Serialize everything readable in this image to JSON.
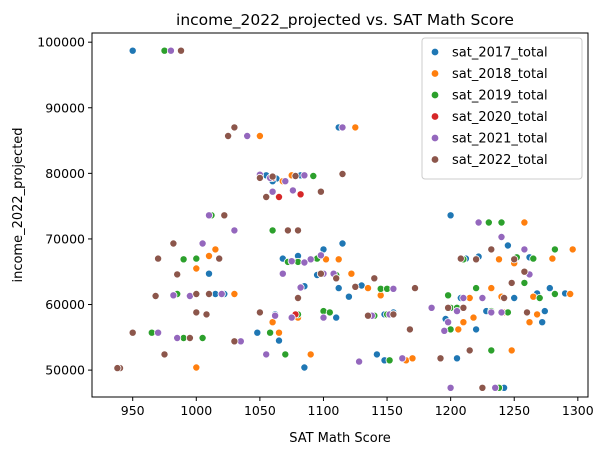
{
  "chart_data": {
    "type": "scatter",
    "title": "income_2022_projected vs. SAT Math Score",
    "xlabel": "SAT Math Score",
    "ylabel": "income_2022_projected",
    "xlim": [
      918,
      1308
    ],
    "ylim": [
      45900,
      101400
    ],
    "xticks": [
      950,
      1000,
      1050,
      1100,
      1150,
      1200,
      1250,
      1300
    ],
    "yticks": [
      50000,
      60000,
      70000,
      80000,
      90000,
      100000
    ],
    "grid": false,
    "legend_position": "top-right",
    "series": [
      {
        "name": "sat_2017_total",
        "color": "#1f77b4",
        "points": [
          [
            950,
            98700
          ],
          [
            1063,
            79200
          ],
          [
            1055,
            79700
          ],
          [
            1060,
            78800
          ],
          [
            1082,
            79700
          ],
          [
            1112,
            87000
          ],
          [
            1100,
            68400
          ],
          [
            1115,
            69300
          ],
          [
            1068,
            67000
          ],
          [
            1080,
            67400
          ],
          [
            1090,
            66900
          ],
          [
            1010,
            64700
          ],
          [
            1000,
            61600
          ],
          [
            1015,
            61600
          ],
          [
            1022,
            61600
          ],
          [
            1095,
            64500
          ],
          [
            1085,
            62800
          ],
          [
            1112,
            62500
          ],
          [
            1120,
            61200
          ],
          [
            1130,
            62900
          ],
          [
            1145,
            62400
          ],
          [
            1048,
            55700
          ],
          [
            1065,
            54500
          ],
          [
            1085,
            50400
          ],
          [
            1142,
            52400
          ],
          [
            1148,
            51500
          ],
          [
            1062,
            58500
          ],
          [
            1110,
            58000
          ],
          [
            1148,
            58500
          ],
          [
            1200,
            73600
          ],
          [
            1230,
            72500
          ],
          [
            1240,
            72500
          ],
          [
            1212,
            67000
          ],
          [
            1222,
            67300
          ],
          [
            1245,
            69000
          ],
          [
            1262,
            67200
          ],
          [
            1268,
            61700
          ],
          [
            1274,
            59000
          ],
          [
            1278,
            62500
          ],
          [
            1290,
            61700
          ],
          [
            1205,
            51800
          ],
          [
            1238,
            47300
          ],
          [
            1242,
            47300
          ],
          [
            1220,
            56200
          ],
          [
            1228,
            59000
          ],
          [
            1250,
            61000
          ],
          [
            1272,
            57300
          ],
          [
            1208,
            61000
          ],
          [
            1196,
            57800
          ],
          [
            1155,
            58800
          ]
        ]
      },
      {
        "name": "sat_2018_total",
        "color": "#ff7f0e",
        "points": [
          [
            1050,
            85700
          ],
          [
            1125,
            87000
          ],
          [
            1075,
            79700
          ],
          [
            1068,
            78800
          ],
          [
            1102,
            66900
          ],
          [
            1112,
            66900
          ],
          [
            1098,
            64700
          ],
          [
            1122,
            64700
          ],
          [
            1015,
            68400
          ],
          [
            1010,
            67400
          ],
          [
            1000,
            65500
          ],
          [
            1030,
            61600
          ],
          [
            1065,
            55700
          ],
          [
            1080,
            58000
          ],
          [
            1090,
            52400
          ],
          [
            1000,
            50400
          ],
          [
            1060,
            57300
          ],
          [
            1135,
            62500
          ],
          [
            1145,
            61400
          ],
          [
            1165,
            51500
          ],
          [
            1170,
            51800
          ],
          [
            1155,
            58500
          ],
          [
            1258,
            72500
          ],
          [
            1250,
            66300
          ],
          [
            1280,
            67000
          ],
          [
            1296,
            68400
          ],
          [
            1294,
            61600
          ],
          [
            1265,
            61200
          ],
          [
            1268,
            58500
          ],
          [
            1240,
            61200
          ],
          [
            1248,
            53000
          ],
          [
            1238,
            47300
          ],
          [
            1210,
            57300
          ],
          [
            1218,
            58000
          ],
          [
            1242,
            58800
          ],
          [
            1262,
            57300
          ],
          [
            1206,
            56200
          ],
          [
            1215,
            61000
          ],
          [
            1232,
            62500
          ],
          [
            1238,
            66900
          ]
        ]
      },
      {
        "name": "sat_2019_total",
        "color": "#2ca02c",
        "points": [
          [
            975,
            98700
          ],
          [
            1012,
            73600
          ],
          [
            1022,
            73600
          ],
          [
            1060,
            71300
          ],
          [
            1092,
            79600
          ],
          [
            1072,
            66500
          ],
          [
            1080,
            66500
          ],
          [
            1095,
            67000
          ],
          [
            1000,
            67000
          ],
          [
            1005,
            69300
          ],
          [
            985,
            61600
          ],
          [
            1020,
            61600
          ],
          [
            990,
            66900
          ],
          [
            965,
            55700
          ],
          [
            990,
            54900
          ],
          [
            1005,
            54900
          ],
          [
            1058,
            55700
          ],
          [
            1070,
            52400
          ],
          [
            1080,
            58500
          ],
          [
            1100,
            59000
          ],
          [
            1105,
            58800
          ],
          [
            1110,
            64500
          ],
          [
            1145,
            62400
          ],
          [
            1150,
            62400
          ],
          [
            1152,
            51500
          ],
          [
            1140,
            58300
          ],
          [
            1150,
            58500
          ],
          [
            1200,
            56200
          ],
          [
            1200,
            59500
          ],
          [
            1205,
            59500
          ],
          [
            1198,
            61400
          ],
          [
            1232,
            53000
          ],
          [
            1238,
            47300
          ],
          [
            1230,
            72500
          ],
          [
            1240,
            72500
          ],
          [
            1252,
            67200
          ],
          [
            1258,
            63300
          ],
          [
            1265,
            67000
          ],
          [
            1282,
            68400
          ],
          [
            1282,
            61600
          ],
          [
            1270,
            61000
          ],
          [
            1232,
            59000
          ],
          [
            1245,
            58800
          ],
          [
            1220,
            62500
          ],
          [
            1210,
            66900
          ]
        ]
      },
      {
        "name": "sat_2020_total",
        "color": "#d62728",
        "points": [
          [
            1065,
            76400
          ],
          [
            1082,
            76800
          ],
          [
            1078,
            58500
          ],
          [
            1100,
            64700
          ],
          [
            1060,
            79300
          ]
        ]
      },
      {
        "name": "sat_2021_total",
        "color": "#9467bd",
        "points": [
          [
            980,
            98700
          ],
          [
            1040,
            85700
          ],
          [
            1115,
            87000
          ],
          [
            1050,
            79800
          ],
          [
            1058,
            79300
          ],
          [
            1060,
            77200
          ],
          [
            1076,
            77400
          ],
          [
            1085,
            79700
          ],
          [
            1070,
            78800
          ],
          [
            1010,
            73600
          ],
          [
            1030,
            71300
          ],
          [
            1005,
            69300
          ],
          [
            1098,
            67500
          ],
          [
            1090,
            66900
          ],
          [
            1075,
            66600
          ],
          [
            1068,
            64700
          ],
          [
            1020,
            61600
          ],
          [
            995,
            61300
          ],
          [
            982,
            61400
          ],
          [
            970,
            55700
          ],
          [
            985,
            54900
          ],
          [
            1035,
            54400
          ],
          [
            1055,
            52400
          ],
          [
            1100,
            64700
          ],
          [
            1108,
            64700
          ],
          [
            1062,
            58300
          ],
          [
            1075,
            58000
          ],
          [
            1100,
            58000
          ],
          [
            1128,
            51300
          ],
          [
            1138,
            58300
          ],
          [
            1152,
            58500
          ],
          [
            1162,
            51800
          ],
          [
            1185,
            59500
          ],
          [
            1198,
            57300
          ],
          [
            1205,
            59000
          ],
          [
            1200,
            47300
          ],
          [
            1235,
            47300
          ],
          [
            1222,
            72500
          ],
          [
            1240,
            70300
          ],
          [
            1258,
            68400
          ],
          [
            1262,
            64600
          ],
          [
            1248,
            63300
          ],
          [
            1225,
            61000
          ],
          [
            1232,
            58800
          ],
          [
            1240,
            58800
          ],
          [
            1210,
            61000
          ],
          [
            1195,
            56000
          ],
          [
            1155,
            62400
          ],
          [
            1082,
            62600
          ],
          [
            1085,
            66400
          ]
        ]
      },
      {
        "name": "sat_2022_total",
        "color": "#8c564b",
        "points": [
          [
            988,
            98700
          ],
          [
            1030,
            87000
          ],
          [
            1025,
            85700
          ],
          [
            1050,
            79300
          ],
          [
            1060,
            79500
          ],
          [
            1078,
            79600
          ],
          [
            1098,
            77200
          ],
          [
            1115,
            79900
          ],
          [
            1055,
            76400
          ],
          [
            1072,
            71300
          ],
          [
            1080,
            71300
          ],
          [
            1022,
            73600
          ],
          [
            1018,
            67000
          ],
          [
            982,
            69300
          ],
          [
            970,
            67000
          ],
          [
            1010,
            61600
          ],
          [
            1000,
            61600
          ],
          [
            968,
            61300
          ],
          [
            985,
            64600
          ],
          [
            1000,
            58800
          ],
          [
            1008,
            58500
          ],
          [
            995,
            54900
          ],
          [
            950,
            55700
          ],
          [
            975,
            52400
          ],
          [
            940,
            50300
          ],
          [
            938,
            50300
          ],
          [
            1030,
            54400
          ],
          [
            1050,
            58800
          ],
          [
            1080,
            61000
          ],
          [
            1098,
            64700
          ],
          [
            1110,
            64000
          ],
          [
            1125,
            62700
          ],
          [
            1135,
            58300
          ],
          [
            1140,
            64000
          ],
          [
            1155,
            58500
          ],
          [
            1168,
            56200
          ],
          [
            1172,
            62500
          ],
          [
            1192,
            51800
          ],
          [
            1198,
            59500
          ],
          [
            1210,
            59500
          ],
          [
            1225,
            47300
          ],
          [
            1215,
            53000
          ],
          [
            1208,
            67000
          ],
          [
            1220,
            66900
          ],
          [
            1232,
            68400
          ],
          [
            1242,
            61000
          ],
          [
            1248,
            63300
          ],
          [
            1260,
            58800
          ],
          [
            1250,
            66900
          ],
          [
            1258,
            65000
          ]
        ]
      }
    ]
  }
}
